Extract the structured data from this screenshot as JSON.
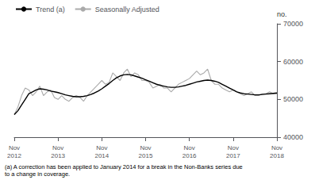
{
  "chart_data": {
    "type": "line",
    "y_label": "no.",
    "footnote": "(a) A correction has been applied to January 2014 for a break in the Non-Banks series due\nto a change in coverage.",
    "categories": [
      "Nov\n2012",
      null,
      null,
      null,
      null,
      null,
      null,
      null,
      null,
      null,
      null,
      null,
      "Nov\n2013",
      null,
      null,
      null,
      null,
      null,
      null,
      null,
      null,
      null,
      null,
      null,
      "Nov\n2014",
      null,
      null,
      null,
      null,
      null,
      null,
      null,
      null,
      null,
      null,
      null,
      "Nov\n2015",
      null,
      null,
      null,
      null,
      null,
      null,
      null,
      null,
      null,
      null,
      null,
      "Nov\n2016",
      null,
      null,
      null,
      null,
      null,
      null,
      null,
      null,
      null,
      null,
      null,
      "Nov\n2017",
      null,
      null,
      null,
      null,
      null,
      null,
      null,
      null,
      null,
      null,
      null,
      "Nov\n2018"
    ],
    "series": [
      {
        "name": "Trend (a)",
        "color": "#000000",
        "values": [
          46000,
          47000,
          48500,
          50000,
          51500,
          52000,
          52500,
          52800,
          52700,
          52500,
          52200,
          52000,
          51800,
          51500,
          51200,
          51000,
          50800,
          50700,
          50700,
          50800,
          51000,
          51300,
          51700,
          52200,
          52800,
          53500,
          54200,
          55000,
          55700,
          56200,
          56500,
          56600,
          56500,
          56200,
          55900,
          55600,
          55200,
          54800,
          54400,
          54000,
          53700,
          53500,
          53300,
          53200,
          53200,
          53300,
          53500,
          53700,
          54000,
          54300,
          54600,
          54800,
          55000,
          55100,
          55000,
          54800,
          54500,
          54000,
          53500,
          53000,
          52500,
          52000,
          51700,
          51500,
          51400,
          51300,
          51200,
          51200,
          51300,
          51400,
          51500,
          51600,
          51700
        ]
      },
      {
        "name": "Seasonally Adjusted",
        "color": "#aaaaaa",
        "values": [
          46000,
          48000,
          51000,
          53000,
          52500,
          51000,
          52000,
          53500,
          51000,
          52000,
          52500,
          50500,
          50000,
          51000,
          50000,
          49500,
          50500,
          51000,
          50500,
          49500,
          51000,
          52000,
          53000,
          54000,
          55000,
          54000,
          54500,
          57000,
          56000,
          55000,
          57000,
          58000,
          56000,
          57000,
          56500,
          55000,
          55000,
          54500,
          53000,
          53500,
          54000,
          53000,
          53000,
          52000,
          53000,
          54000,
          54500,
          55000,
          55500,
          56500,
          57500,
          56500,
          57000,
          58000,
          55000,
          54000,
          54000,
          53000,
          52500,
          52000,
          52500,
          52000,
          51500,
          51000,
          51500,
          52000,
          51000,
          51000,
          51500,
          51500,
          52000,
          51500,
          51500
        ]
      }
    ],
    "ylim": [
      40000,
      70000
    ],
    "yticks": [
      40000,
      50000,
      60000,
      70000
    ],
    "grid": false,
    "legend": "upper left"
  }
}
